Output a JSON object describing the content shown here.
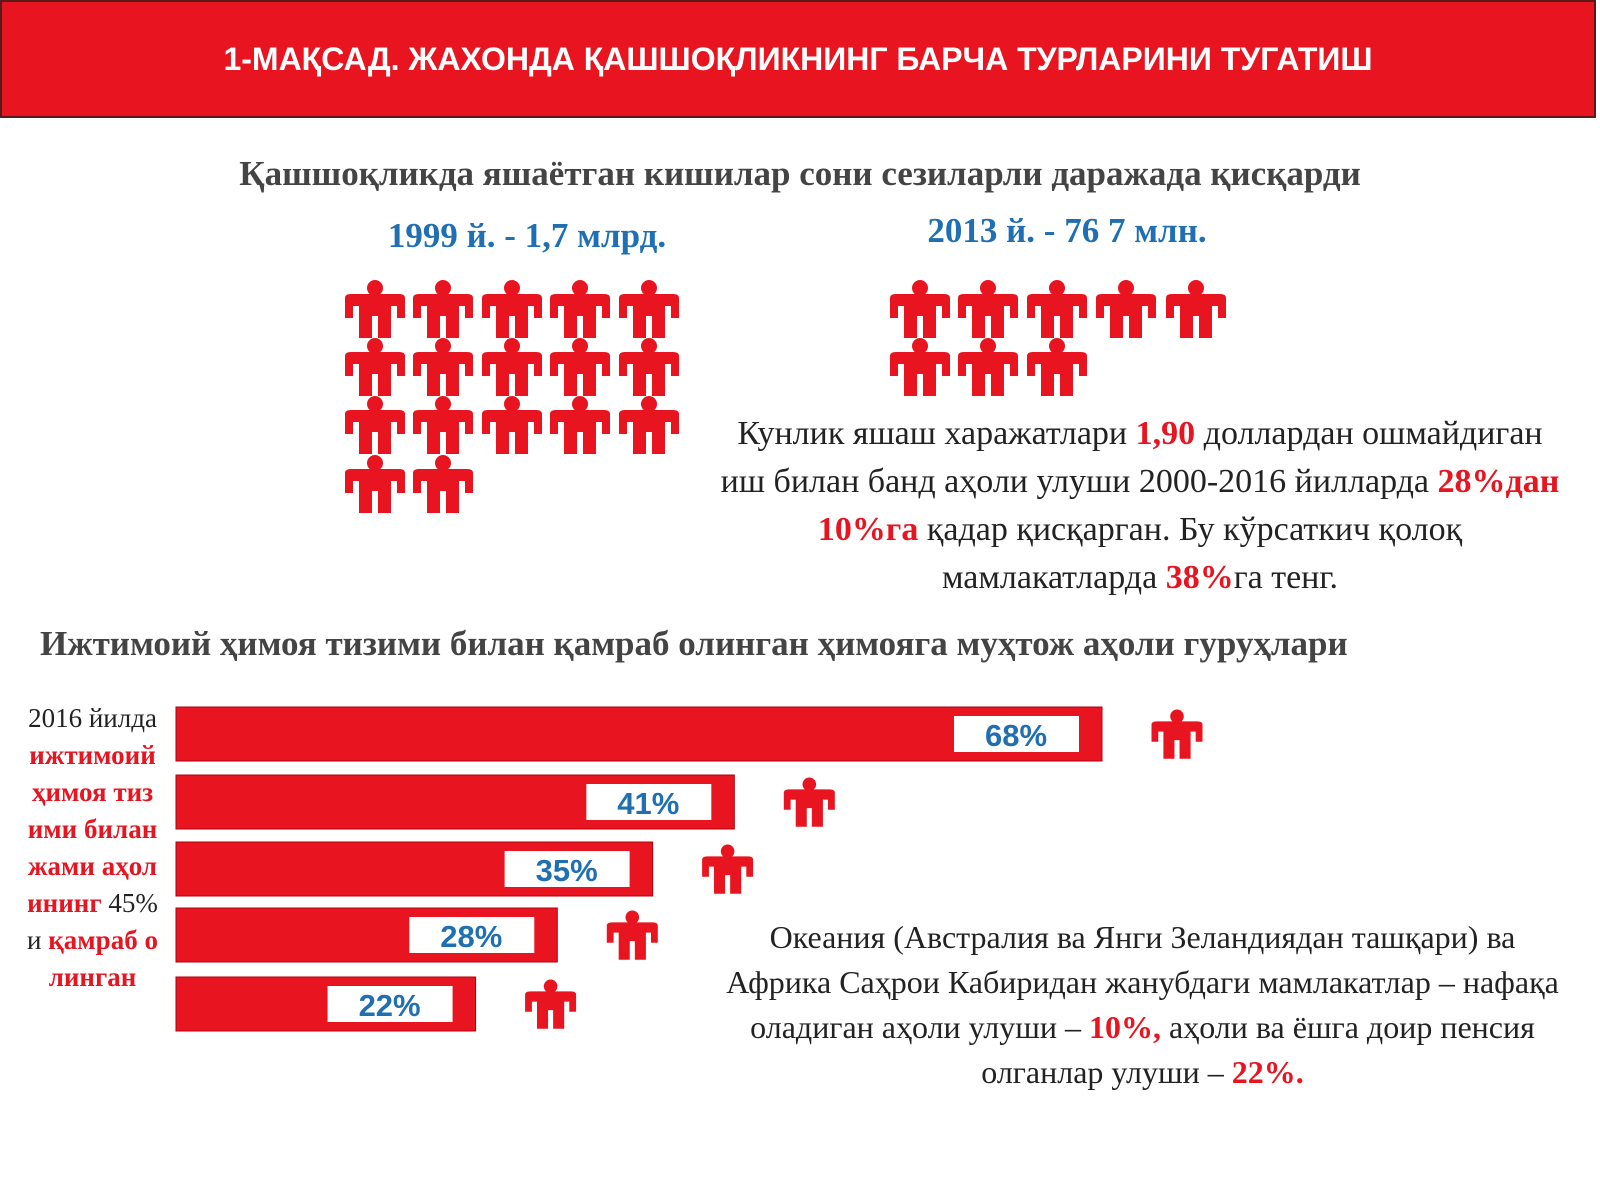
{
  "header": {
    "title": "1-МАҚСАД. ЖАХОНДА ҚАШШОҚЛИКНИНГ БАРЧА ТУРЛАРИНИ ТУГАТИШ"
  },
  "section1": {
    "title": "Қашшоқликда яшаётган кишилар сони сезиларли даражада қисқарди",
    "left_label": "1999 й. - 1,7 млрд.",
    "right_label": "2013 й. - 76 7 млн.",
    "text": [
      "Кунлик яшаш харажатлари ",
      "1,90",
      " доллардан ошмайдиган иш билан банд аҳоли улуши 2000-2016 йилларда ",
      "28%дан 10%га",
      " қадар қисқарган. Бу кўрсаткич қолоқ мамлакатларда ",
      "38%",
      "га тенг."
    ]
  },
  "section2": {
    "title": "Ижтимоий ҳимоя тизими билан қамраб олинган ҳимояга муҳтож аҳоли гуруҳлари",
    "side_text": [
      "2016 йилда",
      " ижтимоий ҳимоя тизими билан жами аҳолининг ",
      "45%и",
      " қамраб олинган"
    ],
    "note": [
      "Океания (Австралия ва Янги Зеландиядан ташқари) ва Африка Саҳрои Кабиридан жанубдаги мамлакатлар – нафақа оладиган аҳоли улуши – ",
      "10%,",
      " аҳоли ва ёшга доир пенсия олганлар улуши – ",
      "22%."
    ]
  },
  "chart_data": {
    "type": "bar",
    "orientation": "horizontal",
    "color": "#e8141f",
    "values": [
      68,
      41,
      35,
      28,
      22
    ],
    "value_labels": [
      "68%",
      "41%",
      "35%",
      "28%",
      "22%"
    ],
    "xlim": [
      0,
      68
    ]
  }
}
